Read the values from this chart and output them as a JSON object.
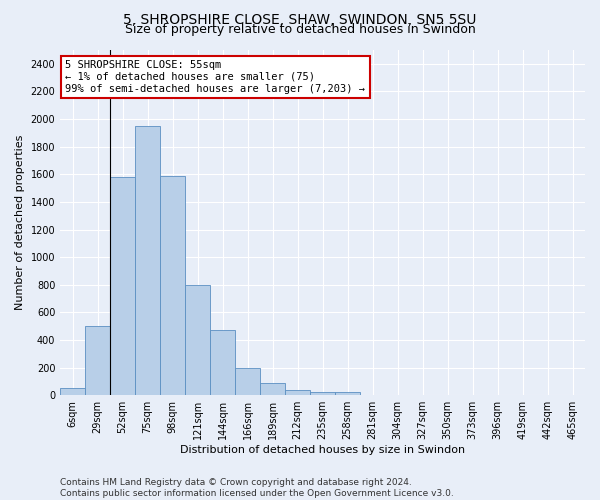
{
  "title": "5, SHROPSHIRE CLOSE, SHAW, SWINDON, SN5 5SU",
  "subtitle": "Size of property relative to detached houses in Swindon",
  "xlabel": "Distribution of detached houses by size in Swindon",
  "ylabel": "Number of detached properties",
  "categories": [
    "6sqm",
    "29sqm",
    "52sqm",
    "75sqm",
    "98sqm",
    "121sqm",
    "144sqm",
    "166sqm",
    "189sqm",
    "212sqm",
    "235sqm",
    "258sqm",
    "281sqm",
    "304sqm",
    "327sqm",
    "350sqm",
    "373sqm",
    "396sqm",
    "419sqm",
    "442sqm",
    "465sqm"
  ],
  "bar_values": [
    55,
    500,
    1580,
    1950,
    1590,
    800,
    475,
    200,
    90,
    35,
    25,
    20,
    0,
    0,
    0,
    0,
    0,
    0,
    0,
    0,
    0
  ],
  "bar_color": "#b8cfe8",
  "bar_edge_color": "#5a8fc2",
  "vline_x_index": 2,
  "annotation_line1": "5 SHROPSHIRE CLOSE: 55sqm",
  "annotation_line2": "← 1% of detached houses are smaller (75)",
  "annotation_line3": "99% of semi-detached houses are larger (7,203) →",
  "annotation_box_color": "#ffffff",
  "annotation_box_edge_color": "#cc0000",
  "ylim": [
    0,
    2500
  ],
  "yticks": [
    0,
    200,
    400,
    600,
    800,
    1000,
    1200,
    1400,
    1600,
    1800,
    2000,
    2200,
    2400
  ],
  "footer_line1": "Contains HM Land Registry data © Crown copyright and database right 2024.",
  "footer_line2": "Contains public sector information licensed under the Open Government Licence v3.0.",
  "bg_color": "#e8eef8",
  "plot_bg_color": "#e8eef8",
  "grid_color": "#ffffff",
  "title_fontsize": 10,
  "subtitle_fontsize": 9,
  "axis_label_fontsize": 8,
  "tick_fontsize": 7,
  "annotation_fontsize": 7.5,
  "footer_fontsize": 6.5
}
